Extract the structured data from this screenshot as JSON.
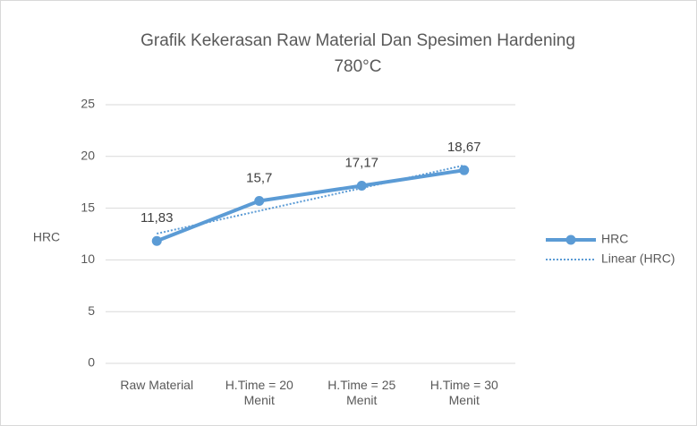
{
  "chart_data": {
    "type": "line",
    "title": [
      "Grafik Kekerasan Raw Material Dan Spesimen Hardening",
      "780°C"
    ],
    "y_label": "HRC",
    "categories": [
      "Raw Material",
      "H.Time = 20 Menit",
      "H.Time = 25 Menit",
      "H.Time = 30 Menit"
    ],
    "series": [
      {
        "name": "HRC",
        "color": "#5b9bd5",
        "values": [
          11.83,
          15.7,
          17.17,
          18.67
        ],
        "value_labels": [
          "11,83",
          "15,7",
          "17,17",
          "18,67"
        ]
      },
      {
        "name": "Linear (HRC)",
        "color": "#5b9bd5",
        "values": [
          12.54,
          14.74,
          16.94,
          19.14
        ],
        "dotted": true
      }
    ],
    "ylim": [
      0,
      25
    ],
    "yticks": [
      0,
      5,
      10,
      15,
      20,
      25
    ],
    "grid": true,
    "legend": "right"
  }
}
